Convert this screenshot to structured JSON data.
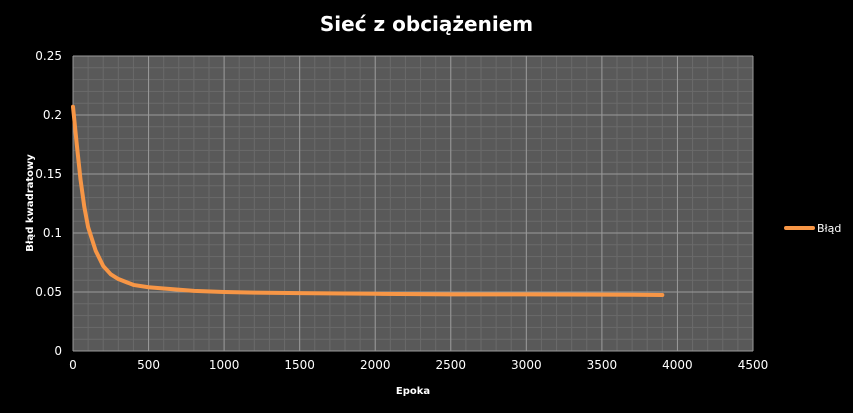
{
  "chart_data": {
    "type": "line",
    "title": "Sieć z obciążeniem",
    "xlabel": "Epoka",
    "ylabel": "Błąd kwadratowy",
    "xlim": [
      0,
      4500
    ],
    "ylim": [
      0,
      0.25
    ],
    "x_ticks": [
      0,
      500,
      1000,
      1500,
      2000,
      2500,
      3000,
      3500,
      4000,
      4500
    ],
    "y_ticks": [
      0,
      0.05,
      0.1,
      0.15,
      0.2,
      0.25
    ],
    "grid": true,
    "legend_position": "right",
    "series": [
      {
        "name": "Błąd",
        "color": "#f79646",
        "x": [
          0,
          25,
          50,
          75,
          100,
          150,
          200,
          250,
          300,
          400,
          500,
          600,
          800,
          1000,
          1200,
          1500,
          2000,
          2500,
          3000,
          3500,
          3900
        ],
        "y": [
          0.207,
          0.175,
          0.145,
          0.122,
          0.105,
          0.085,
          0.072,
          0.065,
          0.061,
          0.056,
          0.054,
          0.053,
          0.051,
          0.05,
          0.0495,
          0.049,
          0.0485,
          0.048,
          0.048,
          0.0478,
          0.0475
        ]
      }
    ]
  }
}
